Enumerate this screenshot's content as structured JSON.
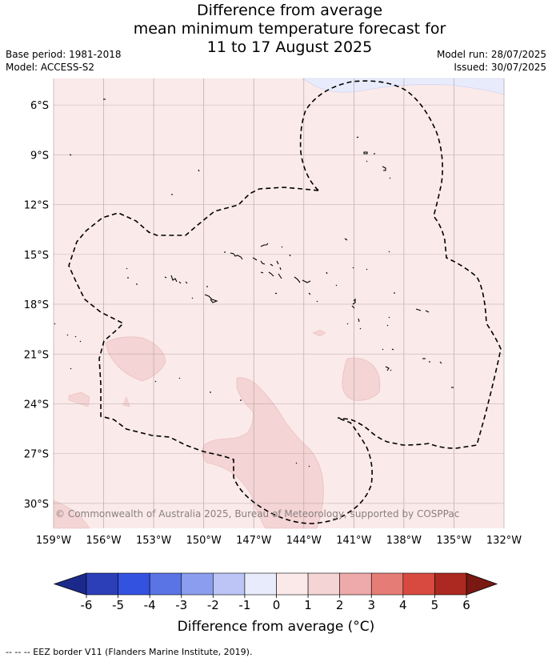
{
  "title": {
    "line1": "Difference from average",
    "line2": "mean minimum temperature forecast for",
    "line3": "11 to 17 August 2025"
  },
  "meta_left": {
    "base_period": "Base period: 1981-2018",
    "model": "Model: ACCESS-S2"
  },
  "meta_right": {
    "model_run": "Model run: 28/07/2025",
    "issued": "Issued: 30/07/2025"
  },
  "map": {
    "lat_labels": [
      "6°S",
      "9°S",
      "12°S",
      "15°S",
      "18°S",
      "21°S",
      "24°S",
      "27°S",
      "30°S"
    ],
    "lon_labels": [
      "159°W",
      "156°W",
      "153°W",
      "150°W",
      "147°W",
      "144°W",
      "141°W",
      "138°W",
      "135°W",
      "132°W"
    ],
    "lat_values": [
      -6,
      -9,
      -12,
      -15,
      -18,
      -21,
      -24,
      -27,
      -30
    ],
    "lon_values": [
      -159,
      -156,
      -153,
      -150,
      -147,
      -144,
      -141,
      -138,
      -135,
      -132
    ],
    "extent": {
      "lon_min": -159,
      "lon_max": -132,
      "lat_max": -4.4,
      "lat_min": -31.5
    },
    "copyright": "© Commonwealth of Australia 2025, Bureau of Meteorology, supported by COSPPac",
    "background_category": "0 to 1",
    "anomaly_regions": [
      {
        "category": "1 to 2",
        "location": "around 22°S 154°W"
      },
      {
        "category": "1 to 2",
        "location": "around 22.5°S 139.5°W"
      },
      {
        "category": "1 to 2",
        "location": "from 23°S 147°W to 31°S 145°W"
      },
      {
        "category": "-1 to 0",
        "location": "north-east corner near 4.5°S 137°W"
      }
    ]
  },
  "colorbar": {
    "ticks": [
      "-6",
      "-5",
      "-4",
      "-3",
      "-2",
      "-1",
      "0",
      "1",
      "2",
      "3",
      "4",
      "5",
      "6"
    ],
    "colors": [
      "#1b2a8a",
      "#2c3fb8",
      "#3352e0",
      "#5a74e6",
      "#8a9dee",
      "#bcc5f5",
      "#e8ebfb",
      "#fbe9e9",
      "#f4d4d4",
      "#eeaaaa",
      "#e57d76",
      "#d84a3f",
      "#ab2920",
      "#7a1813"
    ],
    "title": "Difference from average (°C)"
  },
  "footer": {
    "legend": "--  --  -- EEZ border V11 (Flanders Marine Institute, 2019)."
  }
}
